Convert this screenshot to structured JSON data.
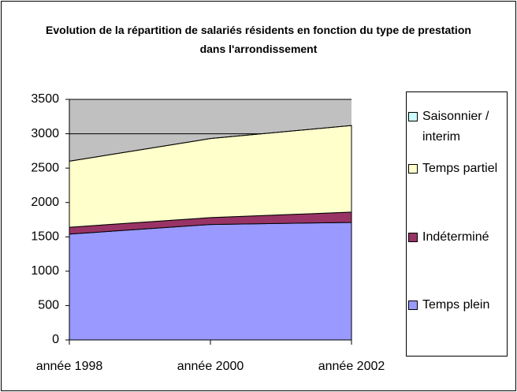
{
  "chart_data": {
    "type": "stacked_area",
    "title": "Evolution de la répartition de salariés résidents en fonction du type de prestation dans l'arrondissement",
    "categories": [
      "année 1998",
      "année 2000",
      "année 2002"
    ],
    "series": [
      {
        "name": "Temps plein",
        "color": "#9999ff",
        "values": [
          1540,
          1680,
          1710
        ]
      },
      {
        "name": "Indéterminé",
        "color": "#993366",
        "values": [
          100,
          100,
          150
        ]
      },
      {
        "name": "Temps partiel",
        "color": "#ffffcc",
        "values": [
          960,
          1150,
          1260
        ]
      },
      {
        "name": "Saisonnier / interim",
        "color": "#ccffff",
        "values": [
          0,
          0,
          0
        ]
      }
    ],
    "ylim": [
      0,
      3500
    ],
    "yticks": [
      0,
      500,
      1000,
      1500,
      2000,
      2500,
      3000,
      3500
    ],
    "grid": true,
    "plot_background": "#c0c0c0",
    "legend": "right"
  }
}
